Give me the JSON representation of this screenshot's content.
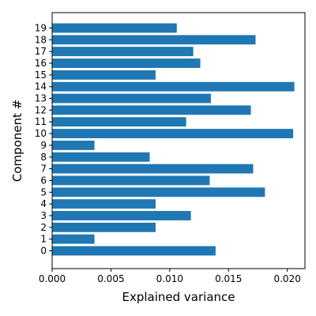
{
  "chart_data": {
    "type": "bar",
    "orientation": "horizontal",
    "title": "",
    "xlabel": "Explained variance",
    "ylabel": "Component #",
    "xlim": [
      0.0,
      0.0215
    ],
    "xticks": [
      0.0,
      0.005,
      0.01,
      0.015,
      0.02
    ],
    "xtick_labels": [
      "0.000",
      "0.005",
      "0.010",
      "0.015",
      "0.020"
    ],
    "categories": [
      "0",
      "1",
      "2",
      "3",
      "4",
      "5",
      "6",
      "7",
      "8",
      "9",
      "10",
      "11",
      "12",
      "13",
      "14",
      "15",
      "16",
      "17",
      "18",
      "19"
    ],
    "values": [
      0.0139,
      0.0036,
      0.0088,
      0.0118,
      0.0088,
      0.0181,
      0.0134,
      0.0171,
      0.0083,
      0.0036,
      0.0205,
      0.0114,
      0.0169,
      0.0135,
      0.0206,
      0.0088,
      0.0126,
      0.012,
      0.0173,
      0.0106
    ],
    "bar_color": "#1f77b4",
    "grid": false,
    "legend": false
  }
}
